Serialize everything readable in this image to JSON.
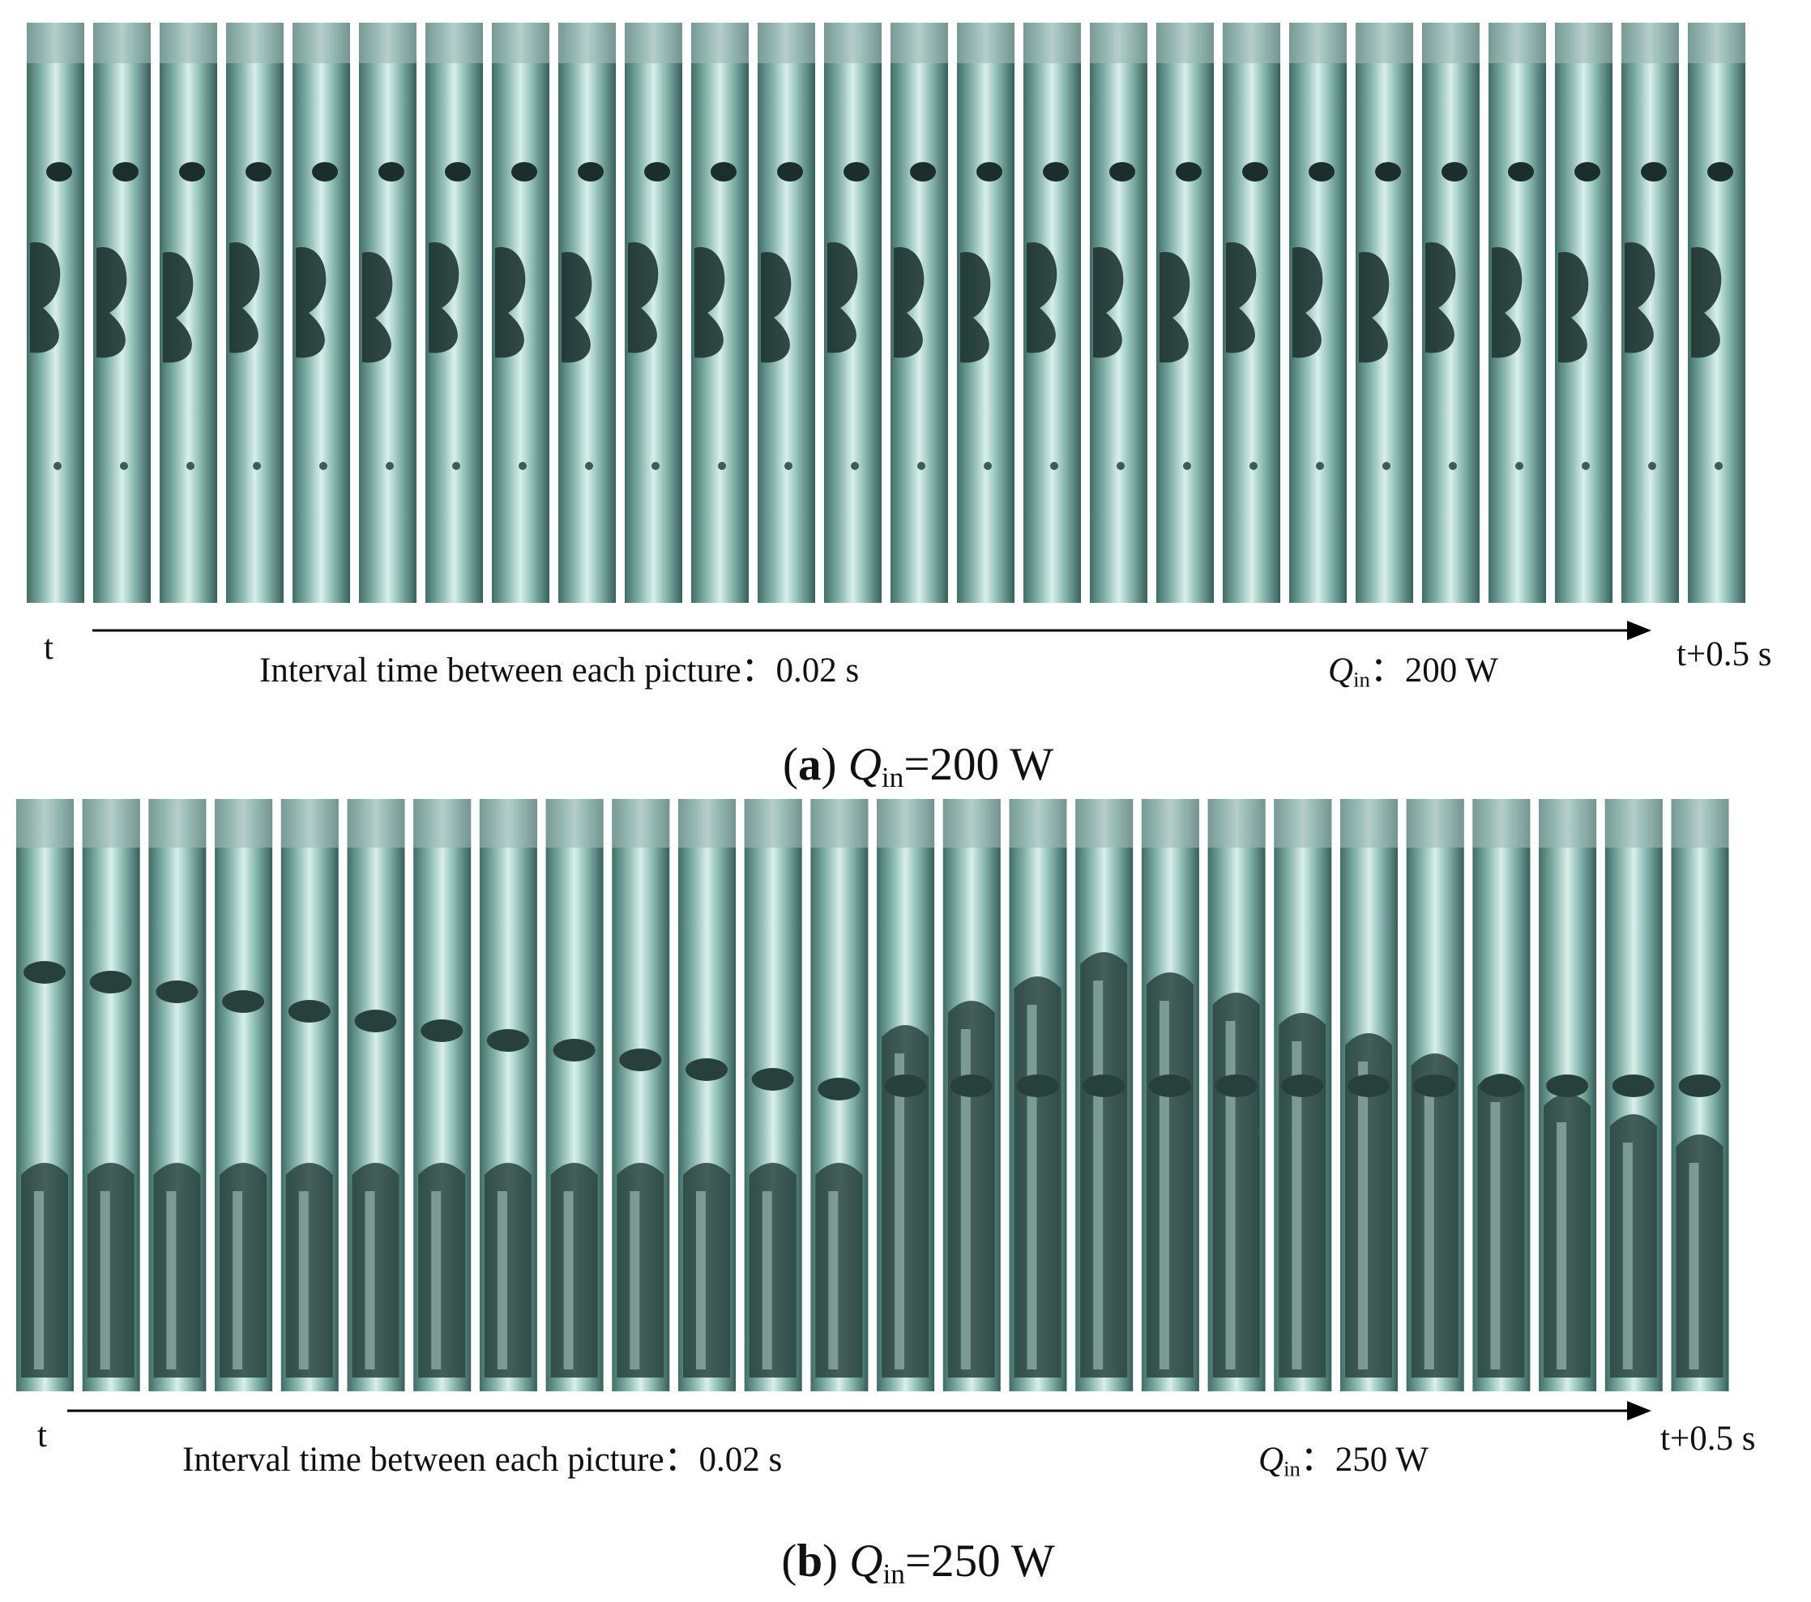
{
  "panels": [
    {
      "start_label": "t",
      "interval_label": "Interval time between each picture：",
      "interval_value": "0.02 s",
      "q_symbol": "Q",
      "q_subscript": "in",
      "q_separator": "：",
      "q_value": "200 W",
      "end_label": "t+0.5 s",
      "caption": {
        "prefix": "(",
        "letter": "a",
        "suffix": ")",
        "symbol": "Q",
        "subscript": "in",
        "relation": "=",
        "value": "200 W"
      }
    },
    {
      "start_label": "t",
      "interval_label": "Interval time between each picture：",
      "interval_value": "0.02 s",
      "q_symbol": "Q",
      "q_subscript": "in",
      "q_separator": "：",
      "q_value": "250 W",
      "end_label": "t+0.5 s",
      "caption": {
        "prefix": "(",
        "letter": "b",
        "suffix": ")",
        "symbol": "Q",
        "subscript": "in",
        "relation": "=",
        "value": "250 W"
      }
    }
  ]
}
